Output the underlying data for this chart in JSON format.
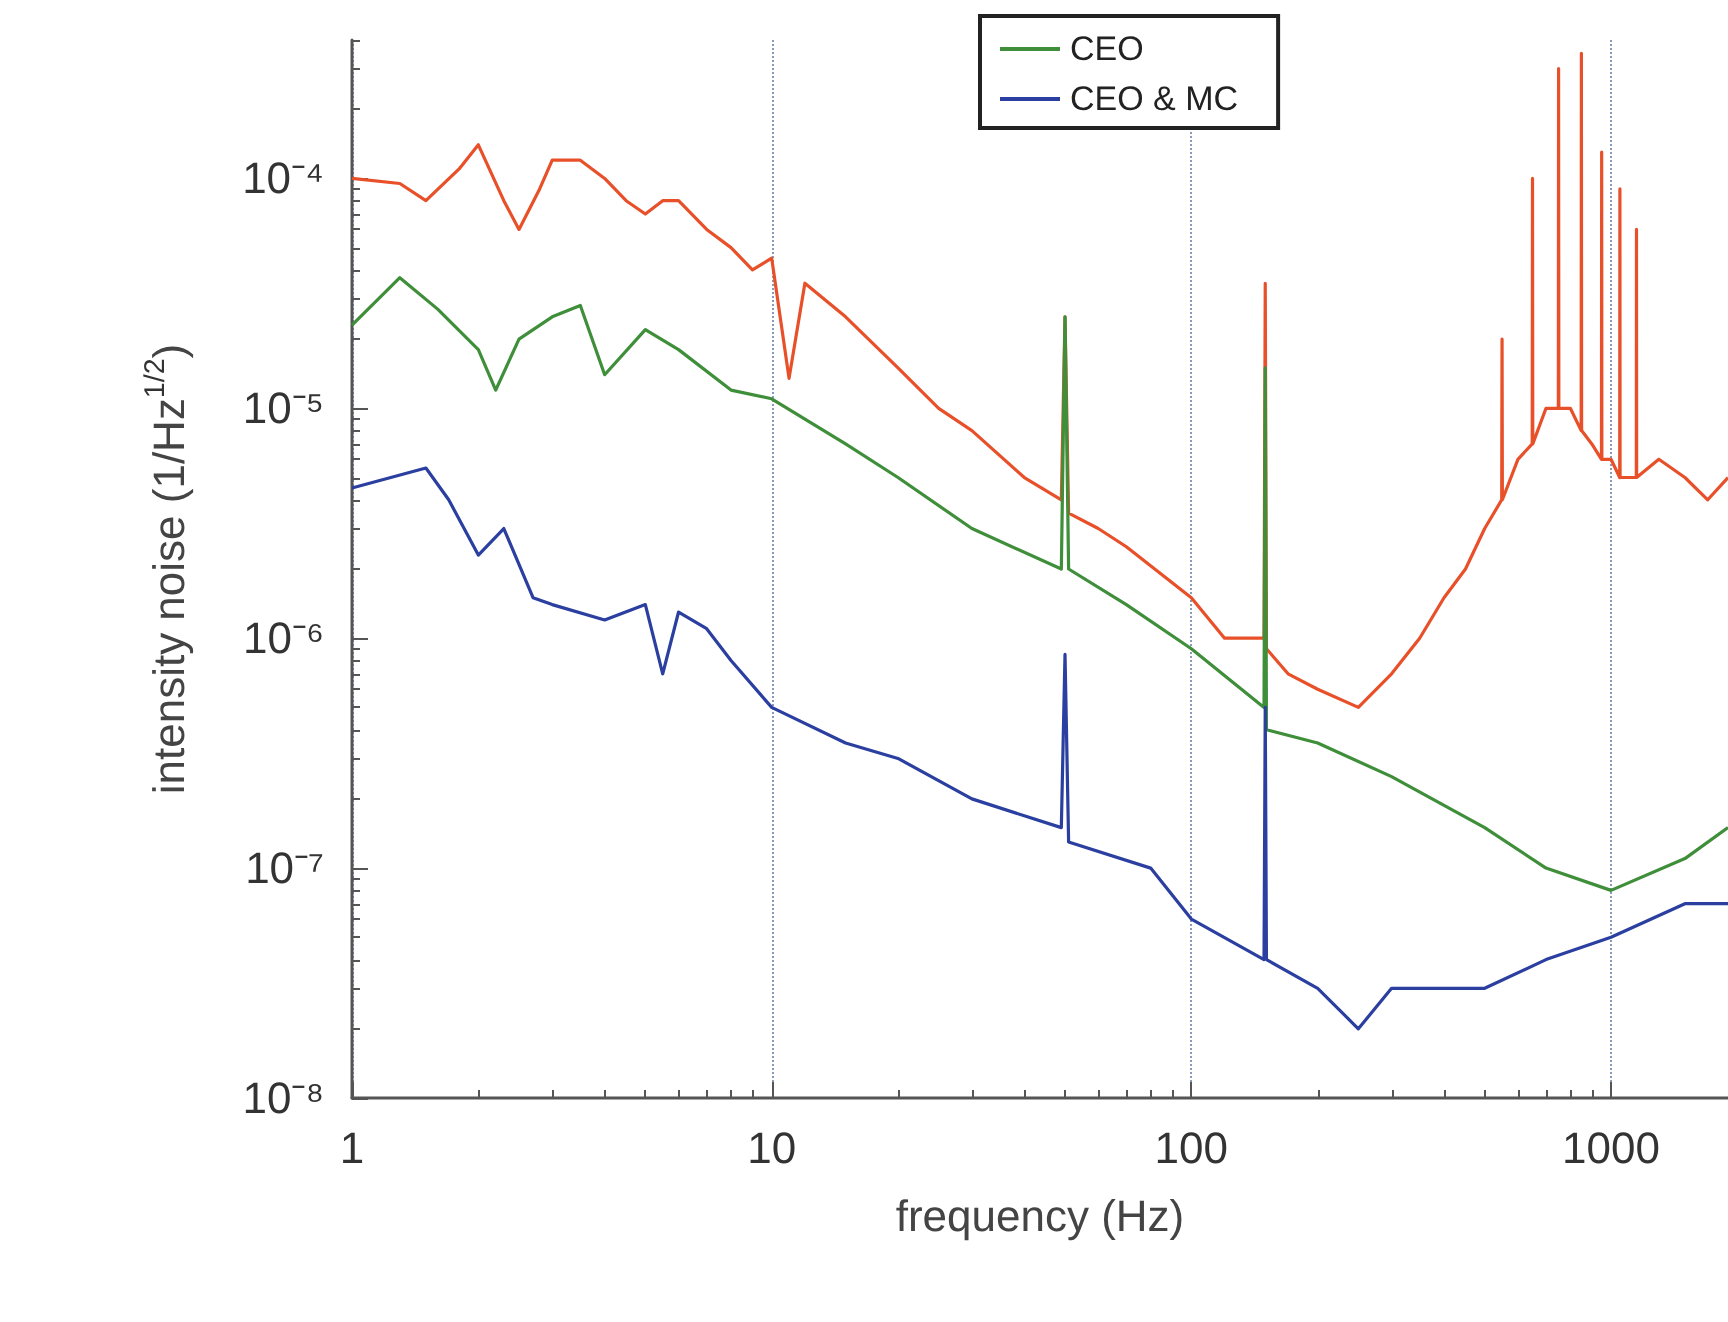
{
  "chart_data": {
    "type": "line",
    "xlabel": "frequency (Hz)",
    "ylabel": "intensity noise (1/Hz$^{1/2}$)",
    "log": "xy",
    "grid": "x",
    "legend": "top",
    "marker": "none",
    "line_style": "solid",
    "xlim": [
      1,
      1900
    ],
    "xticks": [
      1,
      10,
      100,
      1000
    ],
    "ylim": [
      1e-08,
      0.0004
    ],
    "yticks": [
      {
        "value": 1e-08,
        "label": "10⁻⁸"
      },
      {
        "value": 1e-07,
        "label": "10⁻⁷"
      },
      {
        "value": 1e-06,
        "label": "10⁻⁶"
      },
      {
        "value": 1e-05,
        "label": "10⁻⁵"
      },
      {
        "value": 0.0001,
        "label": "10⁻⁴"
      }
    ],
    "series": [
      {
        "color": "#e8502a",
        "x": [
          1,
          1.3,
          1.5,
          1.8,
          2,
          2.3,
          2.5,
          2.8,
          3,
          3.5,
          4,
          4.5,
          5,
          5.5,
          6,
          7,
          8,
          9,
          10,
          11,
          12,
          15,
          20,
          25,
          30,
          40,
          49,
          50,
          51,
          60,
          70,
          100,
          120,
          149,
          150,
          151,
          170,
          200,
          250,
          300,
          350,
          400,
          450,
          500,
          549,
          550,
          551,
          600,
          649,
          650,
          651,
          700,
          749,
          750,
          751,
          800,
          849,
          850,
          851,
          900,
          949,
          950,
          951,
          1000,
          1049,
          1050,
          1051,
          1149,
          1150,
          1151,
          1300,
          1500,
          1700,
          1900
        ],
        "values": [
          0.0001,
          9.5e-05,
          8e-05,
          0.00011,
          0.00014,
          8e-05,
          6e-05,
          9e-05,
          0.00012,
          0.00012,
          0.0001,
          8e-05,
          7e-05,
          8e-05,
          8e-05,
          6e-05,
          5e-05,
          4e-05,
          4.5e-05,
          1.35e-05,
          3.5e-05,
          2.5e-05,
          1.5e-05,
          1e-05,
          8e-06,
          5e-06,
          4e-06,
          2.5e-05,
          3.5e-06,
          3e-06,
          2.5e-06,
          1.5e-06,
          1e-06,
          1e-06,
          3.5e-05,
          9e-07,
          7e-07,
          6e-07,
          5e-07,
          7e-07,
          1e-06,
          1.5e-06,
          2e-06,
          3e-06,
          4e-06,
          2e-05,
          4e-06,
          6e-06,
          7e-06,
          0.0001,
          7e-06,
          1e-05,
          1e-05,
          0.0003,
          1e-05,
          1e-05,
          8e-06,
          0.00035,
          8e-06,
          7e-06,
          6e-06,
          0.00013,
          6e-06,
          6e-06,
          5e-06,
          9e-05,
          5e-06,
          5e-06,
          6e-05,
          5e-06,
          6e-06,
          5e-06,
          4e-06,
          5e-06
        ]
      },
      {
        "name": "CEO",
        "color": "#3e8e3a",
        "x": [
          1,
          1.3,
          1.6,
          2,
          2.2,
          2.5,
          3,
          3.5,
          4,
          5,
          6,
          8,
          10,
          15,
          20,
          30,
          49,
          50,
          51,
          70,
          100,
          149,
          150,
          151,
          200,
          300,
          500,
          700,
          1000,
          1500,
          1900
        ],
        "values": [
          2.3e-05,
          3.7e-05,
          2.7e-05,
          1.8e-05,
          1.2e-05,
          2e-05,
          2.5e-05,
          2.8e-05,
          1.4e-05,
          2.2e-05,
          1.8e-05,
          1.2e-05,
          1.1e-05,
          7e-06,
          5e-06,
          3e-06,
          2e-06,
          2.5e-05,
          2e-06,
          1.4e-06,
          9e-07,
          5e-07,
          1.5e-05,
          4e-07,
          3.5e-07,
          2.5e-07,
          1.5e-07,
          1e-07,
          8e-08,
          1.1e-07,
          1.5e-07
        ]
      },
      {
        "name": "CEO & MC",
        "color": "#2b3fa0",
        "x": [
          1,
          1.5,
          1.7,
          2,
          2.3,
          2.7,
          3,
          4,
          5,
          5.5,
          6,
          7,
          8,
          10,
          15,
          20,
          30,
          49,
          50,
          51,
          80,
          100,
          149,
          150,
          151,
          200,
          250,
          300,
          500,
          700,
          1000,
          1500,
          1900
        ],
        "values": [
          4.5e-06,
          5.5e-06,
          4e-06,
          2.3e-06,
          3e-06,
          1.5e-06,
          1.4e-06,
          1.2e-06,
          1.4e-06,
          7e-07,
          1.3e-06,
          1.1e-06,
          8e-07,
          5e-07,
          3.5e-07,
          3e-07,
          2e-07,
          1.5e-07,
          8.5e-07,
          1.3e-07,
          1e-07,
          6e-08,
          4e-08,
          5e-07,
          4e-08,
          3e-08,
          2e-08,
          3e-08,
          3e-08,
          4e-08,
          5e-08,
          7e-08,
          7e-08
        ]
      }
    ]
  }
}
